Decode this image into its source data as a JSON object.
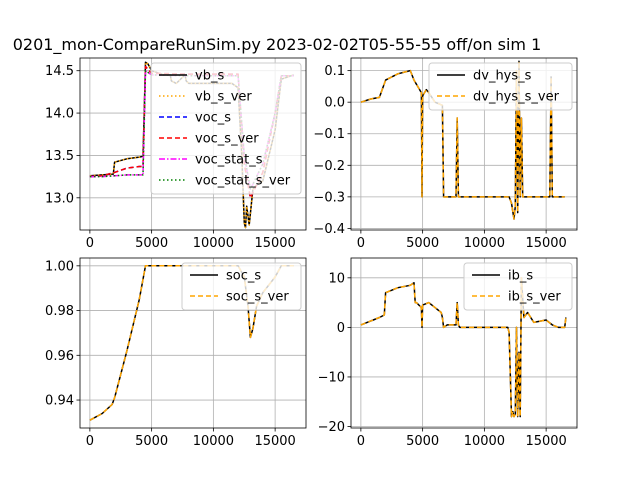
{
  "figure": {
    "title": "0201_mon-CompareRunSim.py   2023-02-02T05-55-55 off/on sim 1"
  },
  "chart_data": [
    {
      "type": "line",
      "title": "",
      "xlabel": "",
      "ylabel": "",
      "xlim": [
        -800,
        17500
      ],
      "ylim": [
        12.62,
        14.65
      ],
      "xticks": [
        0,
        5000,
        10000,
        15000
      ],
      "yticks": [
        13.0,
        13.5,
        14.0,
        14.5
      ],
      "ytick_labels": [
        "13.0",
        "13.5",
        "14.0",
        "14.5"
      ],
      "grid": true,
      "legend_position": "upper-right",
      "series": [
        {
          "name": "vb_s",
          "color": "#000000",
          "style": "solid",
          "x": [
            0,
            1000,
            1900,
            2000,
            3000,
            4000,
            4300,
            4400,
            4500,
            4700,
            5000,
            6000,
            6500,
            6600,
            7000,
            7700,
            7800,
            8000,
            10000,
            11500,
            12000,
            12300,
            12500,
            12600,
            12700,
            12900,
            13200,
            13500,
            14000,
            15000,
            15500,
            16500
          ],
          "y": [
            13.26,
            13.27,
            13.28,
            13.42,
            13.46,
            13.48,
            13.49,
            14.0,
            14.6,
            14.58,
            14.5,
            14.45,
            14.45,
            14.38,
            14.35,
            14.45,
            14.38,
            14.35,
            14.35,
            14.35,
            14.3,
            13.5,
            12.7,
            12.65,
            12.9,
            12.68,
            13.1,
            13.15,
            13.2,
            13.8,
            14.4,
            14.45
          ]
        },
        {
          "name": "vb_s_ver",
          "color": "#ffa500",
          "style": "dotted",
          "x": [
            0,
            1000,
            1900,
            2000,
            3000,
            4000,
            4300,
            4400,
            4500,
            4700,
            5000,
            6000,
            6500,
            6600,
            7000,
            7700,
            7800,
            8000,
            10000,
            11500,
            12000,
            12300,
            12500,
            12600,
            12700,
            12900,
            13200,
            13500,
            14000,
            15000,
            15500,
            16500
          ],
          "y": [
            13.26,
            13.27,
            13.28,
            13.42,
            13.46,
            13.48,
            13.49,
            14.0,
            14.6,
            14.58,
            14.5,
            14.45,
            14.45,
            14.38,
            14.35,
            14.45,
            14.38,
            14.35,
            14.35,
            14.35,
            14.3,
            13.5,
            12.7,
            12.65,
            12.9,
            12.68,
            13.1,
            13.15,
            13.2,
            13.8,
            14.4,
            14.45
          ]
        },
        {
          "name": "voc_s",
          "color": "#0000ff",
          "style": "dashed",
          "x": [
            0,
            1000,
            2000,
            3000,
            4000,
            4300,
            4500,
            5000,
            8000,
            12000,
            12500,
            13000,
            14000,
            15000,
            15500,
            16500
          ],
          "y": [
            13.25,
            13.26,
            13.3,
            13.35,
            13.37,
            13.37,
            14.55,
            14.47,
            14.46,
            14.46,
            13.4,
            13.0,
            13.3,
            14.0,
            14.44,
            14.44
          ]
        },
        {
          "name": "voc_s_ver",
          "color": "#ff0000",
          "style": "dashed",
          "x": [
            0,
            1000,
            2000,
            3000,
            4000,
            4300,
            4500,
            5000,
            8000,
            12000,
            12500,
            13000,
            14000,
            15000,
            15500,
            16500
          ],
          "y": [
            13.25,
            13.26,
            13.3,
            13.35,
            13.37,
            13.37,
            14.55,
            14.47,
            14.46,
            14.46,
            13.4,
            13.0,
            13.3,
            14.0,
            14.44,
            14.44
          ]
        },
        {
          "name": "voc_stat_s",
          "color": "#ff00ff",
          "style": "dashdot",
          "x": [
            0,
            1000,
            2000,
            3000,
            4000,
            4300,
            4500,
            5000,
            8000,
            12000,
            12500,
            13000,
            14000,
            15000,
            15500,
            16500
          ],
          "y": [
            13.25,
            13.25,
            13.26,
            13.27,
            13.27,
            13.27,
            14.5,
            14.45,
            14.44,
            14.44,
            13.5,
            13.1,
            13.4,
            14.0,
            14.44,
            14.44
          ]
        },
        {
          "name": "voc_stat_s_ver",
          "color": "#008000",
          "style": "dotted",
          "x": [
            0,
            1000,
            2000,
            3000,
            4000,
            4300,
            4500,
            5000,
            8000,
            12000,
            12500,
            13000,
            14000,
            15000,
            15500,
            16500
          ],
          "y": [
            13.25,
            13.25,
            13.26,
            13.27,
            13.27,
            13.27,
            14.5,
            14.45,
            14.44,
            14.44,
            13.5,
            13.1,
            13.4,
            14.0,
            14.44,
            14.44
          ]
        }
      ]
    },
    {
      "type": "line",
      "title": "",
      "xlabel": "",
      "ylabel": "",
      "xlim": [
        -800,
        17500
      ],
      "ylim": [
        -0.405,
        0.14
      ],
      "xticks": [
        0,
        5000,
        10000,
        15000
      ],
      "yticks": [
        -0.4,
        -0.3,
        -0.2,
        -0.1,
        0.0,
        0.1
      ],
      "ytick_labels": [
        "−0.4",
        "−0.3",
        "−0.2",
        "−0.1",
        "0.0",
        "0.1"
      ],
      "grid": true,
      "legend_position": "upper-right",
      "series": [
        {
          "name": "dv_hys_s",
          "color": "#000000",
          "style": "solid",
          "x": [
            0,
            800,
            1500,
            2000,
            3000,
            4000,
            4300,
            4600,
            4900,
            4950,
            5000,
            5300,
            5500,
            6000,
            6600,
            6700,
            7000,
            7700,
            7800,
            7900,
            8000,
            9000,
            10000,
            11500,
            12000,
            12200,
            12400,
            12500,
            12600,
            12700,
            12800,
            12900,
            13000,
            13100,
            13300,
            13600,
            14000,
            15000,
            15300,
            15400,
            15500,
            16000,
            16500
          ],
          "y": [
            0.0,
            0.01,
            0.015,
            0.07,
            0.09,
            0.1,
            0.07,
            0.05,
            0.03,
            -0.3,
            0.02,
            0.04,
            0.03,
            0.0,
            -0.01,
            -0.3,
            -0.3,
            -0.3,
            -0.05,
            -0.3,
            -0.3,
            -0.3,
            -0.3,
            -0.3,
            -0.3,
            -0.32,
            -0.37,
            -0.33,
            0.1,
            -0.35,
            0.13,
            -0.3,
            -0.05,
            -0.3,
            -0.3,
            -0.3,
            -0.3,
            -0.3,
            -0.3,
            0.08,
            -0.3,
            -0.3,
            -0.3
          ]
        },
        {
          "name": "dv_hys_s_ver",
          "color": "#ffa500",
          "style": "dashed",
          "x": [
            0,
            800,
            1500,
            2000,
            3000,
            4000,
            4300,
            4600,
            4900,
            4950,
            5000,
            5300,
            5500,
            6000,
            6600,
            6700,
            7000,
            7700,
            7800,
            7900,
            8000,
            9000,
            10000,
            11500,
            12000,
            12200,
            12400,
            12500,
            12600,
            12700,
            12800,
            12900,
            13000,
            13100,
            13300,
            13600,
            14000,
            15000,
            15300,
            15400,
            15500,
            16000,
            16500
          ],
          "y": [
            0.0,
            0.01,
            0.015,
            0.07,
            0.09,
            0.1,
            0.07,
            0.05,
            0.03,
            -0.3,
            0.02,
            0.04,
            0.03,
            0.0,
            -0.01,
            -0.3,
            -0.3,
            -0.3,
            -0.05,
            -0.3,
            -0.3,
            -0.3,
            -0.3,
            -0.3,
            -0.3,
            -0.32,
            -0.37,
            -0.33,
            0.1,
            -0.35,
            0.13,
            -0.3,
            -0.05,
            -0.3,
            -0.3,
            -0.3,
            -0.3,
            -0.3,
            -0.3,
            0.08,
            -0.3,
            -0.3,
            -0.3
          ]
        }
      ]
    },
    {
      "type": "line",
      "title": "",
      "xlabel": "",
      "ylabel": "",
      "xlim": [
        -800,
        17500
      ],
      "ylim": [
        0.9275,
        1.0035
      ],
      "xticks": [
        0,
        5000,
        10000,
        15000
      ],
      "yticks": [
        0.94,
        0.96,
        0.98,
        1.0
      ],
      "ytick_labels": [
        "0.94",
        "0.96",
        "0.98",
        "1.00"
      ],
      "grid": true,
      "legend_position": "upper-right",
      "series": [
        {
          "name": "soc_s",
          "color": "#000000",
          "style": "solid",
          "x": [
            0,
            1000,
            1800,
            2000,
            3000,
            4000,
            4500,
            5000,
            8000,
            12000,
            12500,
            12800,
            13000,
            13200,
            13500,
            14000,
            15000,
            15500,
            16500
          ],
          "y": [
            0.931,
            0.934,
            0.938,
            0.941,
            0.962,
            0.985,
            1.0,
            1.0,
            1.0,
            1.0,
            0.995,
            0.982,
            0.968,
            0.972,
            0.982,
            0.988,
            0.995,
            1.0,
            1.0
          ]
        },
        {
          "name": "soc_s_ver",
          "color": "#ffa500",
          "style": "dashed",
          "x": [
            0,
            1000,
            1800,
            2000,
            3000,
            4000,
            4500,
            5000,
            8000,
            12000,
            12500,
            12800,
            13000,
            13200,
            13500,
            14000,
            15000,
            15500,
            16500
          ],
          "y": [
            0.931,
            0.934,
            0.938,
            0.941,
            0.962,
            0.985,
            1.0,
            1.0,
            1.0,
            1.0,
            0.995,
            0.982,
            0.968,
            0.972,
            0.982,
            0.988,
            0.995,
            1.0,
            1.0
          ]
        }
      ]
    },
    {
      "type": "line",
      "title": "",
      "xlabel": "",
      "ylabel": "",
      "xlim": [
        -800,
        17500
      ],
      "ylim": [
        -20.3,
        14.0
      ],
      "xticks": [
        0,
        5000,
        10000,
        15000
      ],
      "yticks": [
        -20,
        -10,
        0,
        10
      ],
      "ytick_labels": [
        "−20",
        "−10",
        "0",
        "10"
      ],
      "grid": true,
      "legend_position": "upper-right",
      "series": [
        {
          "name": "ib_s",
          "color": "#000000",
          "style": "solid",
          "x": [
            0,
            500,
            1000,
            1500,
            1900,
            2000,
            2500,
            3000,
            4000,
            4300,
            4400,
            4500,
            4900,
            4950,
            5000,
            5500,
            6000,
            6500,
            6600,
            6700,
            7000,
            7700,
            7800,
            7900,
            8000,
            10000,
            11500,
            11900,
            12000,
            12200,
            12300,
            12400,
            12500,
            12600,
            12700,
            12800,
            12900,
            13000,
            13200,
            13500,
            14000,
            15000,
            15500,
            16000,
            16500,
            16600
          ],
          "y": [
            0.5,
            1.0,
            1.5,
            2.0,
            2.5,
            7.0,
            7.5,
            8.0,
            8.5,
            9.0,
            5.0,
            5.0,
            4.0,
            0.0,
            4.5,
            5.0,
            4.0,
            3.0,
            2.0,
            0.0,
            0.5,
            0.5,
            5.0,
            0.5,
            0.0,
            0.0,
            0.0,
            0.0,
            -1.0,
            -18.0,
            -17.0,
            -18.0,
            -17.5,
            0.0,
            -18.0,
            -5.0,
            -18.0,
            10.0,
            2.0,
            3.0,
            1.0,
            1.5,
            0.5,
            0.0,
            0.0,
            2.0
          ]
        },
        {
          "name": "ib_s_ver",
          "color": "#ffa500",
          "style": "dashed",
          "x": [
            0,
            500,
            1000,
            1500,
            1900,
            2000,
            2500,
            3000,
            4000,
            4300,
            4400,
            4500,
            4900,
            4950,
            5000,
            5500,
            6000,
            6500,
            6600,
            6700,
            7000,
            7700,
            7800,
            7900,
            8000,
            10000,
            11500,
            11900,
            12000,
            12200,
            12300,
            12400,
            12500,
            12600,
            12700,
            12800,
            12900,
            13000,
            13200,
            13500,
            14000,
            15000,
            15500,
            16000,
            16500,
            16600
          ],
          "y": [
            0.5,
            1.0,
            1.5,
            2.0,
            2.5,
            7.0,
            7.5,
            8.0,
            8.5,
            9.0,
            5.0,
            5.0,
            4.0,
            0.0,
            4.5,
            5.0,
            4.0,
            3.0,
            2.0,
            0.0,
            0.5,
            0.5,
            5.0,
            0.5,
            0.0,
            0.0,
            0.0,
            0.0,
            -1.0,
            -18.0,
            -17.0,
            -18.0,
            -17.5,
            0.0,
            -18.0,
            -5.0,
            -18.0,
            10.0,
            2.0,
            3.0,
            1.0,
            1.5,
            0.5,
            0.0,
            0.0,
            2.0
          ]
        }
      ]
    }
  ]
}
